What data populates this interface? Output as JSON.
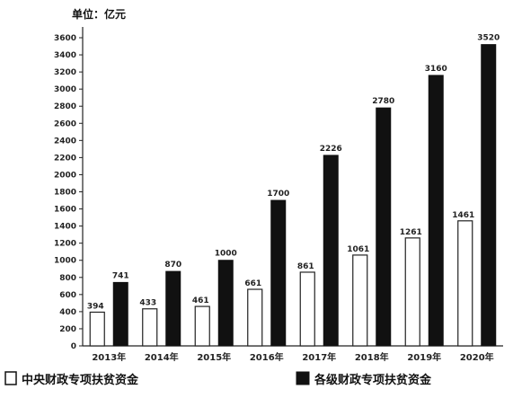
{
  "chart_data": {
    "type": "bar",
    "unit_label": "单位：亿元",
    "categories": [
      "2013年",
      "2014年",
      "2015年",
      "2016年",
      "2017年",
      "2018年",
      "2019年",
      "2020年"
    ],
    "series": [
      {
        "name": "中央财政专项扶贫资金",
        "values": [
          394,
          433,
          461,
          661,
          861,
          1061,
          1261,
          1461
        ],
        "labels": [
          "394",
          "433",
          "461",
          "661",
          "861",
          "1061",
          "1261",
          "1461"
        ],
        "color": "#ffffff"
      },
      {
        "name": "各级财政专项扶贫资金",
        "values": [
          741,
          870,
          1000,
          1700,
          2226,
          2780,
          3160,
          3520
        ],
        "labels": [
          "741",
          "870",
          "1000",
          "1700",
          "2226",
          "2780",
          "3160",
          "3520"
        ],
        "color": "#111111"
      }
    ],
    "yticks": [
      0,
      200,
      400,
      600,
      800,
      1000,
      1200,
      1400,
      1600,
      1800,
      2000,
      2200,
      2400,
      2600,
      2800,
      3000,
      3200,
      3400,
      3600
    ],
    "ylim": [
      0,
      3600
    ],
    "legend_position": "bottom",
    "grid": false
  }
}
